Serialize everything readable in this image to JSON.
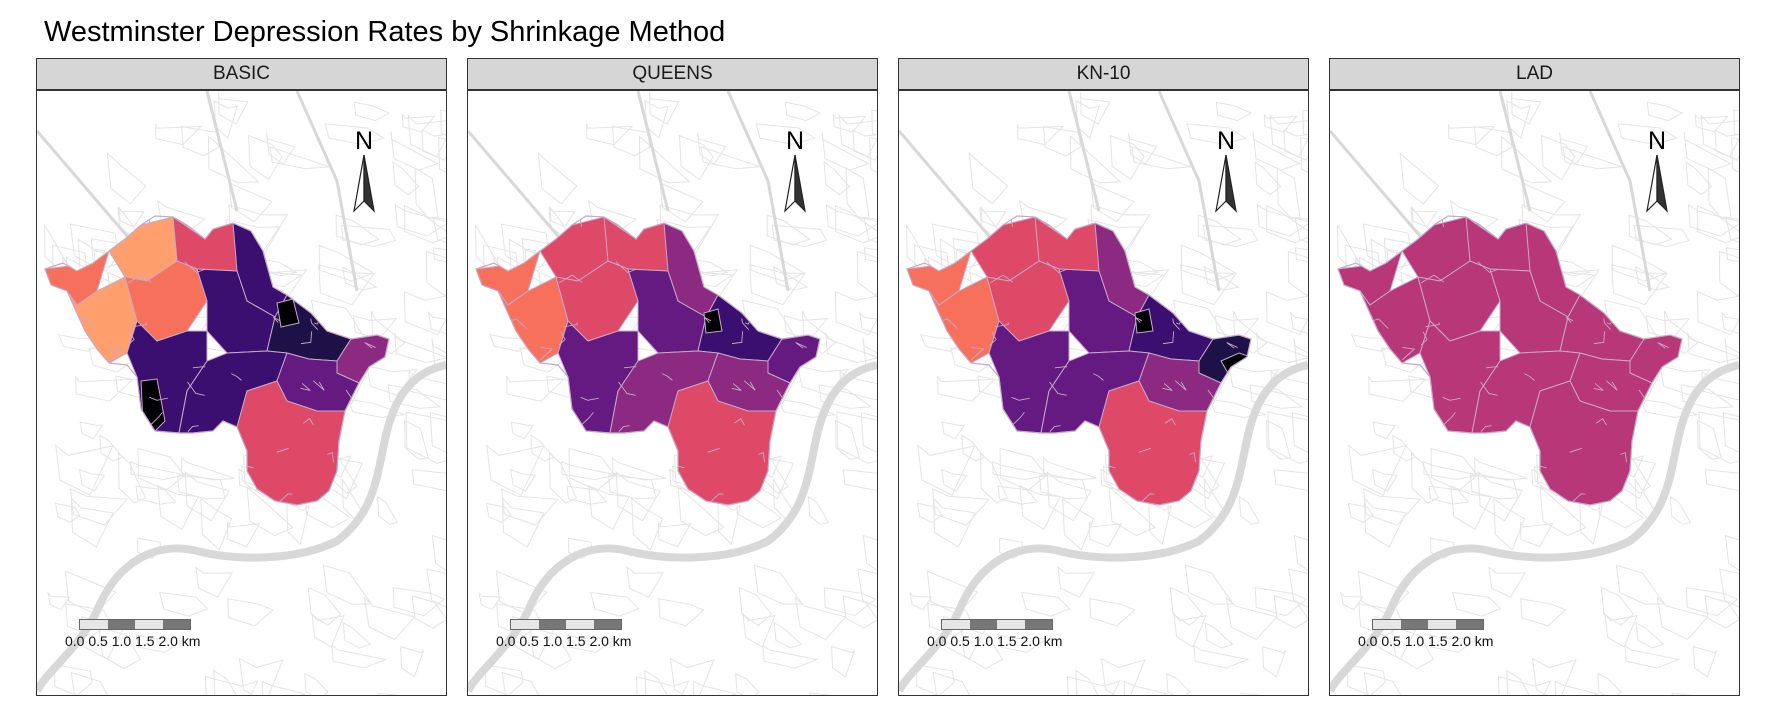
{
  "title": "Westminster Depression Rates by Shrinkage Method",
  "panels": [
    {
      "label": "BASIC"
    },
    {
      "label": "QUEENS"
    },
    {
      "label": "KN-10"
    },
    {
      "label": "LAD"
    }
  ],
  "north_label": "N",
  "scale_labels": [
    "0.0",
    "0.5",
    "1.0",
    "1.5",
    "2.0 km"
  ],
  "colors": {
    "basemap_lines": "#e4e4e4",
    "region_borders": "#c8a8c8",
    "palette": [
      "#000004",
      "#1d1147",
      "#3b0f70",
      "#641a80",
      "#8c2981",
      "#b73779",
      "#de4968",
      "#f7705c",
      "#fe9f6d",
      "#fecf92",
      "#fcfdbf"
    ]
  }
}
